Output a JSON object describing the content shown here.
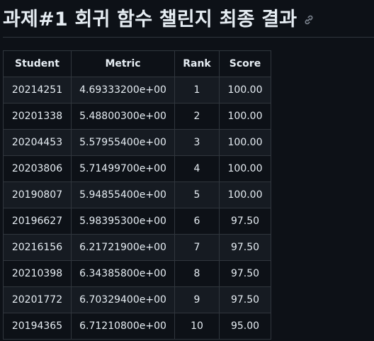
{
  "heading": {
    "title": "과제#1 회귀 함수 챌린지 최종 결과",
    "anchor_icon": "link-icon"
  },
  "table": {
    "columns": [
      "Student",
      "Metric",
      "Rank",
      "Score"
    ],
    "rows": [
      {
        "student": "20214251",
        "metric": "4.69333200e+00",
        "rank": "1",
        "score": "100.00"
      },
      {
        "student": "20201338",
        "metric": "5.48800300e+00",
        "rank": "2",
        "score": "100.00"
      },
      {
        "student": "20204453",
        "metric": "5.57955400e+00",
        "rank": "3",
        "score": "100.00"
      },
      {
        "student": "20203806",
        "metric": "5.71499700e+00",
        "rank": "4",
        "score": "100.00"
      },
      {
        "student": "20190807",
        "metric": "5.94855400e+00",
        "rank": "5",
        "score": "100.00"
      },
      {
        "student": "20196627",
        "metric": "5.98395300e+00",
        "rank": "6",
        "score": "97.50"
      },
      {
        "student": "20216156",
        "metric": "6.21721900e+00",
        "rank": "7",
        "score": "97.50"
      },
      {
        "student": "20210398",
        "metric": "6.34385800e+00",
        "rank": "8",
        "score": "97.50"
      },
      {
        "student": "20201772",
        "metric": "6.70329400e+00",
        "rank": "9",
        "score": "97.50"
      },
      {
        "student": "20194365",
        "metric": "6.71210800e+00",
        "rank": "10",
        "score": "95.00"
      }
    ]
  },
  "colors": {
    "background": "#0d1117",
    "row_alt": "#161b22",
    "border": "#30363d",
    "text": "#e6edf3",
    "icon": "#7d8590"
  }
}
